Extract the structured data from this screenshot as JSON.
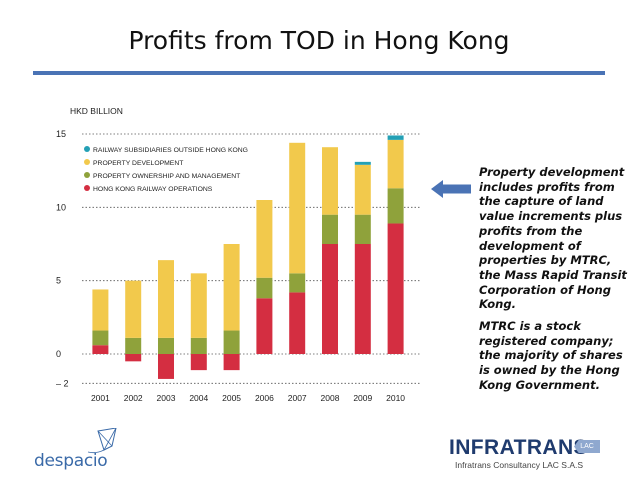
{
  "slide": {
    "title": "Profits from TOD in Hong Kong",
    "callout": {
      "p1": "Property development includes profits from the capture of land value increments plus profits from the development of properties by MTRC, the Mass Rapid Transit Corporation of Hong Kong.",
      "p2": "MTRC is a stock registered company; the majority of shares is owned by the Hong Kong Government."
    },
    "logos": {
      "despacio": "despacio",
      "infratrans": "INFRATRANS",
      "infratrans_tag": "LAC",
      "infratrans_sub": "Infratrans Consultancy LAC S.A.S"
    },
    "colors": {
      "title_rule": "#4a73b5",
      "arrow": "#4a73b5"
    }
  },
  "chart_data": {
    "type": "bar",
    "stacked": true,
    "ylabel": "HKD BILLION",
    "ylim": [
      -2,
      15
    ],
    "yticks": [
      15,
      10,
      5,
      0,
      -2
    ],
    "ytick_labels": [
      "15",
      "10",
      "5",
      "0",
      "– 2"
    ],
    "categories": [
      "2001",
      "2002",
      "2003",
      "2004",
      "2005",
      "2006",
      "2007",
      "2008",
      "2009",
      "2010"
    ],
    "legend_position": "top-left",
    "series": [
      {
        "name": "HONG KONG RAILWAY OPERATIONS",
        "color": "#d42e41",
        "values": [
          0.6,
          -0.5,
          -1.7,
          -1.1,
          -1.1,
          3.8,
          4.2,
          7.5,
          7.5,
          8.9
        ]
      },
      {
        "name": "PROPERTY OWNERSHIP AND MANAGEMENT",
        "color": "#8fa23b",
        "values": [
          1.0,
          1.1,
          1.1,
          1.1,
          1.6,
          1.4,
          1.3,
          2.0,
          2.0,
          2.4
        ]
      },
      {
        "name": "PROPERTY DEVELOPMENT",
        "color": "#f2c94c",
        "values": [
          2.8,
          3.9,
          5.3,
          4.4,
          5.9,
          5.3,
          8.9,
          4.6,
          3.4,
          3.3
        ]
      },
      {
        "name": "RAILWAY SUBSIDIARIES OUTSIDE HONG KONG",
        "color": "#23a0b5",
        "values": [
          0,
          0,
          0,
          0,
          0,
          0,
          0,
          0,
          0.2,
          0.3
        ]
      }
    ],
    "legend_order": [
      3,
      2,
      1,
      0
    ]
  }
}
